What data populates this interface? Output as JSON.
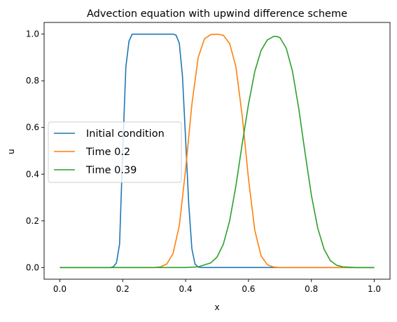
{
  "chart_data": {
    "type": "line",
    "title": "Advection equation with upwind difference scheme",
    "xlabel": "x",
    "ylabel": "u",
    "xlim": [
      -0.05,
      1.05
    ],
    "ylim": [
      -0.05,
      1.05
    ],
    "xticks": [
      0.0,
      0.2,
      0.4,
      0.6,
      0.8,
      1.0
    ],
    "xtick_labels": [
      "0.0",
      "0.2",
      "0.4",
      "0.6",
      "0.8",
      "1.0"
    ],
    "yticks": [
      0.0,
      0.2,
      0.4,
      0.6,
      0.8,
      1.0
    ],
    "ytick_labels": [
      "0.0",
      "0.2",
      "0.4",
      "0.6",
      "0.8",
      "1.0"
    ],
    "grid": false,
    "legend_position": "center-left",
    "series": [
      {
        "name": "Initial condition",
        "color": "#1f77b4",
        "x": [
          0.0,
          0.16,
          0.17,
          0.18,
          0.19,
          0.2,
          0.21,
          0.22,
          0.23,
          0.24,
          0.36,
          0.37,
          0.38,
          0.39,
          0.4,
          0.41,
          0.42,
          0.43,
          0.44,
          0.45,
          1.0
        ],
        "y": [
          0.0,
          0.0,
          0.003,
          0.02,
          0.1,
          0.5,
          0.86,
          0.97,
          1.0,
          1.0,
          1.0,
          0.995,
          0.96,
          0.82,
          0.55,
          0.27,
          0.08,
          0.015,
          0.002,
          0.0,
          0.0
        ]
      },
      {
        "name": "Time 0.2",
        "color": "#ff7f0e",
        "x": [
          0.0,
          0.3,
          0.32,
          0.34,
          0.36,
          0.38,
          0.4,
          0.42,
          0.44,
          0.46,
          0.48,
          0.5,
          0.52,
          0.54,
          0.56,
          0.58,
          0.6,
          0.62,
          0.64,
          0.66,
          0.68,
          0.7,
          1.0
        ],
        "y": [
          0.0,
          0.0,
          0.003,
          0.015,
          0.06,
          0.18,
          0.42,
          0.7,
          0.9,
          0.98,
          0.998,
          1.0,
          0.995,
          0.96,
          0.86,
          0.65,
          0.38,
          0.16,
          0.05,
          0.012,
          0.002,
          0.0,
          0.0
        ]
      },
      {
        "name": "Time 0.39",
        "color": "#2ca02c",
        "x": [
          0.0,
          0.4,
          0.44,
          0.48,
          0.5,
          0.52,
          0.54,
          0.56,
          0.58,
          0.6,
          0.62,
          0.64,
          0.66,
          0.68,
          0.69,
          0.7,
          0.72,
          0.74,
          0.76,
          0.78,
          0.8,
          0.82,
          0.84,
          0.86,
          0.88,
          0.9,
          0.94,
          1.0
        ],
        "y": [
          0.0,
          0.0,
          0.003,
          0.02,
          0.045,
          0.1,
          0.2,
          0.35,
          0.53,
          0.7,
          0.84,
          0.93,
          0.975,
          0.99,
          0.99,
          0.985,
          0.94,
          0.84,
          0.68,
          0.49,
          0.31,
          0.17,
          0.08,
          0.03,
          0.01,
          0.003,
          0.0,
          0.0
        ]
      }
    ]
  }
}
